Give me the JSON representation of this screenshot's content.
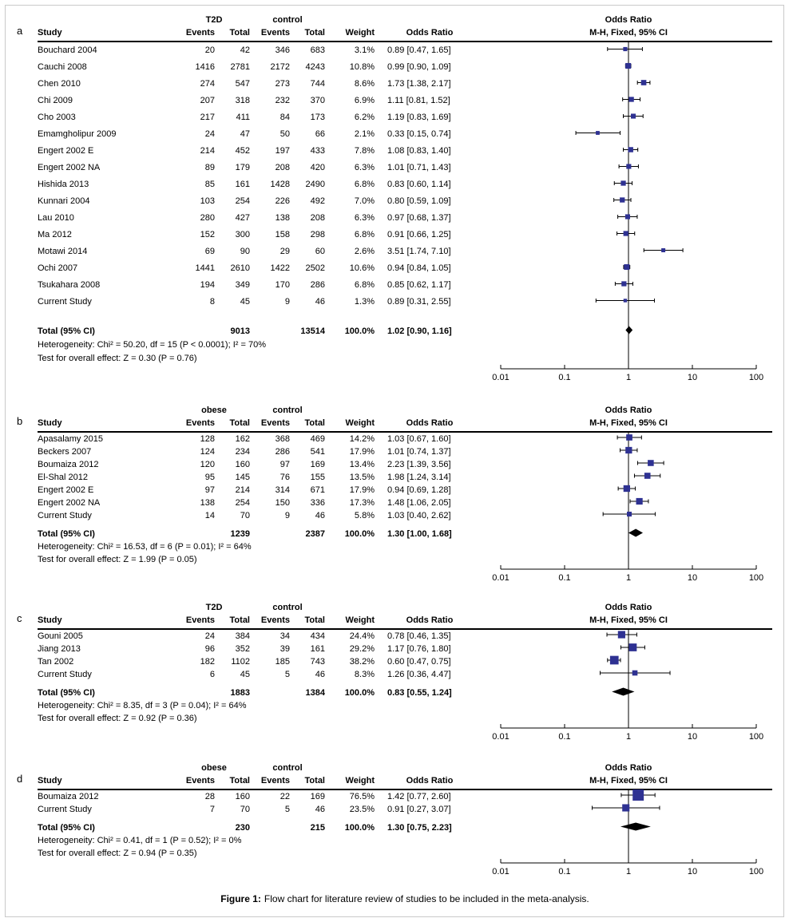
{
  "figure": {
    "caption_prefix": "Figure 1:",
    "caption_text": "Flow chart for literature review of studies to be included in the meta-analysis."
  },
  "columns": {
    "study": "Study",
    "events": "Events",
    "total": "Total",
    "weight": "Weight",
    "odds_ratio": "Odds Ratio",
    "plot_header_line1": "Odds Ratio",
    "plot_header_line2": "M-H, Fixed, 95% CI"
  },
  "colors": {
    "square": "#2e3192",
    "ci_line": "#000000",
    "diamond": "#000000",
    "axis": "#000000",
    "rule": "#000000",
    "border": "#c9c9c9"
  },
  "chart_data": {
    "type": "forest",
    "effect_measure": "Odds Ratio, M-H, Fixed, 95% CI",
    "axis": {
      "scale": "log10",
      "min": 0.01,
      "max": 100,
      "ticks": [
        0.01,
        0.1,
        1,
        10,
        100
      ],
      "tick_labels": [
        "0.01",
        "0.1",
        "1",
        "10",
        "100"
      ]
    },
    "panels": [
      {
        "label": "a",
        "group1": "T2D",
        "group2": "control",
        "studies": [
          {
            "name": "Bouchard 2004",
            "events1": "20",
            "total1": "42",
            "events2": "346",
            "total2": "683",
            "weight": "3.1%",
            "or_text": "0.89 [0.47, 1.65]",
            "or": 0.89,
            "lo": 0.47,
            "hi": 1.65
          },
          {
            "name": "Cauchi 2008",
            "events1": "1416",
            "total1": "2781",
            "events2": "2172",
            "total2": "4243",
            "weight": "10.8%",
            "or_text": "0.99 [0.90, 1.09]",
            "or": 0.99,
            "lo": 0.9,
            "hi": 1.09
          },
          {
            "name": "Chen 2010",
            "events1": "274",
            "total1": "547",
            "events2": "273",
            "total2": "744",
            "weight": "8.6%",
            "or_text": "1.73 [1.38, 2.17]",
            "or": 1.73,
            "lo": 1.38,
            "hi": 2.17
          },
          {
            "name": "Chi 2009",
            "events1": "207",
            "total1": "318",
            "events2": "232",
            "total2": "370",
            "weight": "6.9%",
            "or_text": "1.11 [0.81, 1.52]",
            "or": 1.11,
            "lo": 0.81,
            "hi": 1.52
          },
          {
            "name": "Cho 2003",
            "events1": "217",
            "total1": "411",
            "events2": "84",
            "total2": "173",
            "weight": "6.2%",
            "or_text": "1.19 [0.83, 1.69]",
            "or": 1.19,
            "lo": 0.83,
            "hi": 1.69
          },
          {
            "name": "Emamgholipur 2009",
            "events1": "24",
            "total1": "47",
            "events2": "50",
            "total2": "66",
            "weight": "2.1%",
            "or_text": "0.33 [0.15, 0.74]",
            "or": 0.33,
            "lo": 0.15,
            "hi": 0.74
          },
          {
            "name": "Engert 2002 E",
            "events1": "214",
            "total1": "452",
            "events2": "197",
            "total2": "433",
            "weight": "7.8%",
            "or_text": "1.08 [0.83, 1.40]",
            "or": 1.08,
            "lo": 0.83,
            "hi": 1.4
          },
          {
            "name": "Engert 2002 NA",
            "events1": "89",
            "total1": "179",
            "events2": "208",
            "total2": "420",
            "weight": "6.3%",
            "or_text": "1.01 [0.71, 1.43]",
            "or": 1.01,
            "lo": 0.71,
            "hi": 1.43
          },
          {
            "name": "Hishida 2013",
            "events1": "85",
            "total1": "161",
            "events2": "1428",
            "total2": "2490",
            "weight": "6.8%",
            "or_text": "0.83 [0.60, 1.14]",
            "or": 0.83,
            "lo": 0.6,
            "hi": 1.14
          },
          {
            "name": "Kunnari 2004",
            "events1": "103",
            "total1": "254",
            "events2": "226",
            "total2": "492",
            "weight": "7.0%",
            "or_text": "0.80 [0.59, 1.09]",
            "or": 0.8,
            "lo": 0.59,
            "hi": 1.09
          },
          {
            "name": "Lau 2010",
            "events1": "280",
            "total1": "427",
            "events2": "138",
            "total2": "208",
            "weight": "6.3%",
            "or_text": "0.97 [0.68, 1.37]",
            "or": 0.97,
            "lo": 0.68,
            "hi": 1.37
          },
          {
            "name": "Ma 2012",
            "events1": "152",
            "total1": "300",
            "events2": "158",
            "total2": "298",
            "weight": "6.8%",
            "or_text": "0.91 [0.66, 1.25]",
            "or": 0.91,
            "lo": 0.66,
            "hi": 1.25
          },
          {
            "name": "Motawi 2014",
            "events1": "69",
            "total1": "90",
            "events2": "29",
            "total2": "60",
            "weight": "2.6%",
            "or_text": "3.51 [1.74, 7.10]",
            "or": 3.51,
            "lo": 1.74,
            "hi": 7.1
          },
          {
            "name": "Ochi 2007",
            "events1": "1441",
            "total1": "2610",
            "events2": "1422",
            "total2": "2502",
            "weight": "10.6%",
            "or_text": "0.94 [0.84, 1.05]",
            "or": 0.94,
            "lo": 0.84,
            "hi": 1.05
          },
          {
            "name": "Tsukahara 2008",
            "events1": "194",
            "total1": "349",
            "events2": "170",
            "total2": "286",
            "weight": "6.8%",
            "or_text": "0.85 [0.62, 1.17]",
            "or": 0.85,
            "lo": 0.62,
            "hi": 1.17
          },
          {
            "name": "Current Study",
            "events1": "8",
            "total1": "45",
            "events2": "9",
            "total2": "46",
            "weight": "1.3%",
            "or_text": "0.89 [0.31, 2.55]",
            "or": 0.89,
            "lo": 0.31,
            "hi": 2.55
          }
        ],
        "total": {
          "label": "Total (95% CI)",
          "total1": "9013",
          "total2": "13514",
          "weight": "100.0%",
          "or_text": "1.02 [0.90, 1.16]",
          "or": 1.02,
          "lo": 0.9,
          "hi": 1.16
        },
        "heterogeneity": "Heterogeneity: Chi² = 50.20, df = 15 (P < 0.0001); I² = 70%",
        "overall_effect": "Test for overall effect: Z = 0.30 (P = 0.76)"
      },
      {
        "label": "b",
        "group1": "obese",
        "group2": "control",
        "studies": [
          {
            "name": "Apasalamy 2015",
            "events1": "128",
            "total1": "162",
            "events2": "368",
            "total2": "469",
            "weight": "14.2%",
            "or_text": "1.03 [0.67, 1.60]",
            "or": 1.03,
            "lo": 0.67,
            "hi": 1.6
          },
          {
            "name": "Beckers 2007",
            "events1": "124",
            "total1": "234",
            "events2": "286",
            "total2": "541",
            "weight": "17.9%",
            "or_text": "1.01 [0.74, 1.37]",
            "or": 1.01,
            "lo": 0.74,
            "hi": 1.37
          },
          {
            "name": "Boumaiza 2012",
            "events1": "120",
            "total1": "160",
            "events2": "97",
            "total2": "169",
            "weight": "13.4%",
            "or_text": "2.23 [1.39, 3.56]",
            "or": 2.23,
            "lo": 1.39,
            "hi": 3.56
          },
          {
            "name": "El-Shal 2012",
            "events1": "95",
            "total1": "145",
            "events2": "76",
            "total2": "155",
            "weight": "13.5%",
            "or_text": "1.98 [1.24, 3.14]",
            "or": 1.98,
            "lo": 1.24,
            "hi": 3.14
          },
          {
            "name": "Engert 2002 E",
            "events1": "97",
            "total1": "214",
            "events2": "314",
            "total2": "671",
            "weight": "17.9%",
            "or_text": "0.94 [0.69, 1.28]",
            "or": 0.94,
            "lo": 0.69,
            "hi": 1.28
          },
          {
            "name": "Engert 2002 NA",
            "events1": "138",
            "total1": "254",
            "events2": "150",
            "total2": "336",
            "weight": "17.3%",
            "or_text": "1.48 [1.06, 2.05]",
            "or": 1.48,
            "lo": 1.06,
            "hi": 2.05
          },
          {
            "name": "Current Study",
            "events1": "14",
            "total1": "70",
            "events2": "9",
            "total2": "46",
            "weight": "5.8%",
            "or_text": "1.03 [0.40, 2.62]",
            "or": 1.03,
            "lo": 0.4,
            "hi": 2.62
          }
        ],
        "total": {
          "label": "Total (95% CI)",
          "total1": "1239",
          "total2": "2387",
          "weight": "100.0%",
          "or_text": "1.30 [1.00, 1.68]",
          "or": 1.3,
          "lo": 1.0,
          "hi": 1.68
        },
        "heterogeneity": "Heterogeneity: Chi² = 16.53, df = 6 (P = 0.01); I² = 64%",
        "overall_effect": "Test for overall effect: Z = 1.99 (P = 0.05)"
      },
      {
        "label": "c",
        "group1": "T2D",
        "group2": "control",
        "studies": [
          {
            "name": "Gouni 2005",
            "events1": "24",
            "total1": "384",
            "events2": "34",
            "total2": "434",
            "weight": "24.4%",
            "or_text": "0.78 [0.46, 1.35]",
            "or": 0.78,
            "lo": 0.46,
            "hi": 1.35
          },
          {
            "name": "Jiang 2013",
            "events1": "96",
            "total1": "352",
            "events2": "39",
            "total2": "161",
            "weight": "29.2%",
            "or_text": "1.17 [0.76, 1.80]",
            "or": 1.17,
            "lo": 0.76,
            "hi": 1.8
          },
          {
            "name": "Tan 2002",
            "events1": "182",
            "total1": "1102",
            "events2": "185",
            "total2": "743",
            "weight": "38.2%",
            "or_text": "0.60 [0.47, 0.75]",
            "or": 0.6,
            "lo": 0.47,
            "hi": 0.75
          },
          {
            "name": "Current Study",
            "events1": "6",
            "total1": "45",
            "events2": "5",
            "total2": "46",
            "weight": "8.3%",
            "or_text": "1.26 [0.36, 4.47]",
            "or": 1.26,
            "lo": 0.36,
            "hi": 4.47
          }
        ],
        "total": {
          "label": "Total (95% CI)",
          "total1": "1883",
          "total2": "1384",
          "weight": "100.0%",
          "or_text": "0.83 [0.55, 1.24]",
          "or": 0.83,
          "lo": 0.55,
          "hi": 1.24
        },
        "heterogeneity": "Heterogeneity: Chi² = 8.35, df = 3 (P = 0.04); I² = 64%",
        "overall_effect": "Test for overall effect: Z = 0.92 (P = 0.36)"
      },
      {
        "label": "d",
        "group1": "obese",
        "group2": "control",
        "studies": [
          {
            "name": "Boumaiza 2012",
            "events1": "28",
            "total1": "160",
            "events2": "22",
            "total2": "169",
            "weight": "76.5%",
            "or_text": "1.42 [0.77, 2.60]",
            "or": 1.42,
            "lo": 0.77,
            "hi": 2.6
          },
          {
            "name": "Current Study",
            "events1": "7",
            "total1": "70",
            "events2": "5",
            "total2": "46",
            "weight": "23.5%",
            "or_text": "0.91 [0.27, 3.07]",
            "or": 0.91,
            "lo": 0.27,
            "hi": 3.07
          }
        ],
        "total": {
          "label": "Total (95% CI)",
          "total1": "230",
          "total2": "215",
          "weight": "100.0%",
          "or_text": "1.30 [0.75, 2.23]",
          "or": 1.3,
          "lo": 0.75,
          "hi": 2.23
        },
        "heterogeneity": "Heterogeneity: Chi² = 0.41, df = 1 (P = 0.52); I² = 0%",
        "overall_effect": "Test for overall effect: Z = 0.94 (P = 0.35)"
      }
    ]
  }
}
